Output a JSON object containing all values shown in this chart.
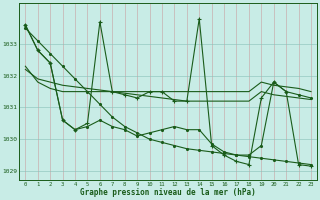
{
  "bg_color": "#c8ece6",
  "line_color": "#1a5c1a",
  "xlabel": "Graphe pression niveau de la mer (hPa)",
  "hours": [
    0,
    1,
    2,
    3,
    4,
    5,
    6,
    7,
    8,
    9,
    10,
    11,
    12,
    13,
    14,
    15,
    16,
    17,
    18,
    19,
    20,
    21,
    22,
    23
  ],
  "line_diag": [
    1033.5,
    1033.1,
    1032.7,
    1032.3,
    1031.9,
    1031.5,
    1031.1,
    1030.7,
    1030.4,
    1030.2,
    1030.0,
    1029.9,
    1029.8,
    1029.7,
    1029.65,
    1029.6,
    1029.55,
    1029.5,
    1029.45,
    1029.4,
    1029.35,
    1029.3,
    1029.25,
    1029.2
  ],
  "line_spike": [
    1033.6,
    1032.8,
    1032.4,
    1030.6,
    1030.3,
    1030.5,
    1033.7,
    1031.5,
    1031.4,
    1031.3,
    1031.5,
    1031.5,
    1031.2,
    1031.2,
    1033.8,
    1029.8,
    1029.5,
    1029.3,
    1029.2,
    1031.3,
    1031.8,
    1031.5,
    1029.2,
    1029.15
  ],
  "line_flat1": [
    1032.3,
    1031.8,
    1031.6,
    1031.5,
    1031.5,
    1031.5,
    1031.5,
    1031.5,
    1031.5,
    1031.5,
    1031.5,
    1031.5,
    1031.5,
    1031.5,
    1031.5,
    1031.5,
    1031.5,
    1031.5,
    1031.5,
    1031.8,
    1031.7,
    1031.65,
    1031.6,
    1031.5
  ],
  "line_flat2": [
    1032.2,
    1031.9,
    1031.8,
    1031.7,
    1031.65,
    1031.6,
    1031.55,
    1031.5,
    1031.45,
    1031.4,
    1031.35,
    1031.3,
    1031.25,
    1031.2,
    1031.2,
    1031.2,
    1031.2,
    1031.2,
    1031.2,
    1031.5,
    1031.4,
    1031.35,
    1031.3,
    1031.25
  ],
  "line_mid": [
    1033.6,
    1032.8,
    1032.4,
    1030.6,
    1030.3,
    1030.4,
    1030.6,
    1030.4,
    1030.3,
    1030.1,
    1030.2,
    1030.3,
    1030.4,
    1030.3,
    1030.3,
    1029.85,
    1029.6,
    1029.5,
    1029.5,
    1029.8,
    1031.8,
    1031.5,
    1031.4,
    1031.3
  ],
  "ylim": [
    1028.7,
    1034.3
  ],
  "yticks": [
    1029,
    1030,
    1031,
    1032,
    1033
  ],
  "xticks": [
    0,
    1,
    2,
    3,
    4,
    5,
    6,
    7,
    8,
    9,
    10,
    11,
    12,
    13,
    14,
    15,
    16,
    17,
    18,
    19,
    20,
    21,
    22,
    23
  ]
}
